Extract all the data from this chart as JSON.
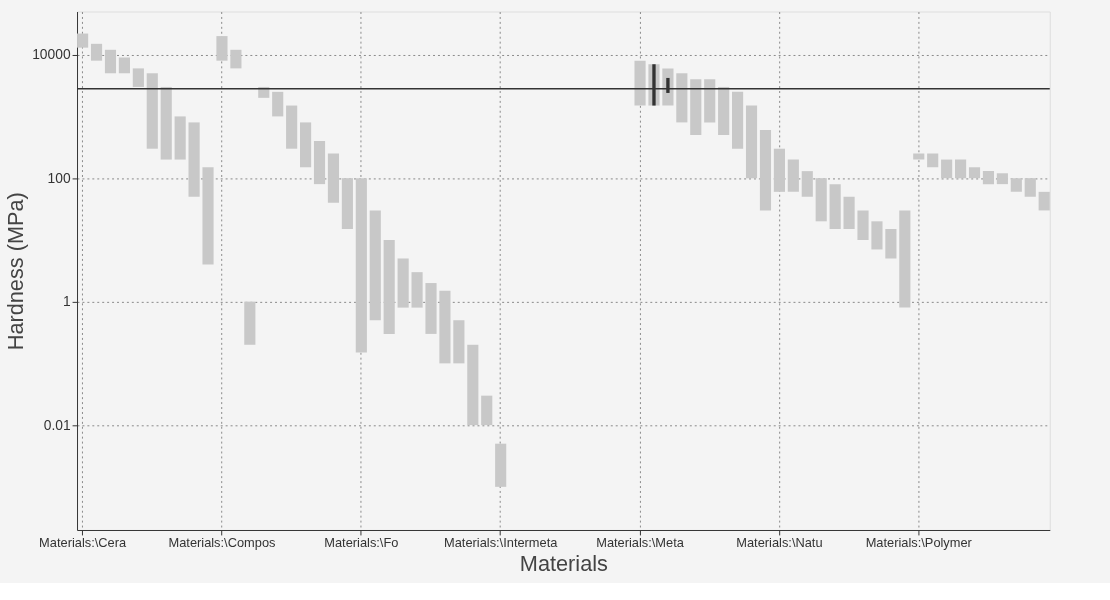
{
  "chart_data": {
    "type": "bar",
    "xlabel": "Materials",
    "ylabel": "Hardness (MPa)",
    "log": true,
    "grid": true,
    "ylim": [
      0.0002,
      50000
    ],
    "yticks": [
      0.01,
      1,
      100,
      10000
    ],
    "categories": [
      "Materials:\\Cera",
      null,
      null,
      null,
      null,
      null,
      null,
      null,
      null,
      null,
      "Materials:\\Compos",
      null,
      null,
      null,
      null,
      null,
      null,
      null,
      null,
      null,
      "Materials:\\Fo",
      null,
      null,
      null,
      null,
      null,
      null,
      null,
      null,
      null,
      "Materials:\\Intermeta",
      null,
      null,
      null,
      null,
      null,
      null,
      null,
      null,
      null,
      "Materials:\\Meta",
      null,
      null,
      null,
      null,
      null,
      null,
      null,
      null,
      null,
      "Materials:\\Natu",
      null,
      null,
      null,
      null,
      null,
      null,
      null,
      null,
      null,
      "Materials:\\Polymer",
      null,
      null,
      null,
      null,
      null,
      null,
      null,
      null,
      null
    ],
    "series": [
      {
        "color": "#c8c8c8",
        "base": [
          13000,
          8000,
          5000,
          5000,
          3000,
          300,
          200,
          200,
          50,
          4,
          8000,
          6000,
          0.2,
          2000,
          1000,
          300,
          150,
          80,
          40,
          15,
          0.15,
          0.5,
          0.3,
          0.8,
          0.8,
          0.3,
          0.1,
          0.1,
          0.01,
          0.01,
          0.001,
          null,
          null,
          null,
          null,
          null,
          null,
          null,
          null,
          null,
          1500,
          1500,
          1500,
          800,
          500,
          800,
          500,
          300,
          100,
          30,
          60,
          60,
          50,
          20,
          15,
          15,
          10,
          7,
          5,
          0.8,
          200,
          150,
          100,
          100,
          100,
          80,
          80,
          60,
          50,
          30
        ],
        "values": [
          9000,
          7000,
          7000,
          4000,
          3000,
          4700,
          2800,
          800,
          750,
          146,
          12000,
          6000,
          0.8,
          1000,
          1500,
          1200,
          650,
          320,
          210,
          85,
          99.85,
          29.5,
          9.7,
          4.2,
          2.2,
          1.7,
          1.4,
          0.4,
          0.19,
          0.02,
          0.004,
          null,
          null,
          null,
          null,
          null,
          null,
          null,
          null,
          null,
          6500,
          5500,
          4500,
          4200,
          3500,
          3200,
          2500,
          2200,
          1400,
          570,
          240,
          140,
          80,
          80,
          65,
          35,
          20,
          13,
          10,
          29.2,
          50,
          100,
          100,
          100,
          50,
          50,
          40,
          40,
          50,
          30
        ]
      },
      {
        "color": "#333333",
        "base": [
          null,
          null,
          null,
          null,
          null,
          null,
          null,
          null,
          null,
          null,
          null,
          null,
          null,
          null,
          null,
          null,
          null,
          null,
          null,
          null,
          null,
          null,
          null,
          null,
          null,
          null,
          null,
          null,
          null,
          null,
          null,
          null,
          null,
          null,
          null,
          null,
          null,
          null,
          null,
          null,
          null,
          1500,
          2400,
          null,
          null,
          null,
          null,
          null,
          null,
          null,
          null,
          null,
          null,
          null,
          null,
          null,
          null,
          null,
          null,
          null,
          null,
          null,
          null,
          null,
          null,
          null,
          null,
          null,
          null,
          null
        ],
        "values": [
          null,
          null,
          null,
          null,
          null,
          null,
          null,
          null,
          null,
          null,
          null,
          null,
          null,
          null,
          null,
          null,
          null,
          null,
          null,
          null,
          null,
          null,
          null,
          null,
          null,
          null,
          null,
          null,
          null,
          null,
          null,
          null,
          null,
          null,
          null,
          null,
          null,
          null,
          null,
          null,
          null,
          5500,
          1800,
          null,
          null,
          null,
          null,
          null,
          null,
          null,
          null,
          null,
          null,
          null,
          null,
          null,
          null,
          null,
          null,
          null,
          null,
          null,
          null,
          null,
          null,
          null,
          null,
          null,
          null,
          null
        ]
      }
    ],
    "ref_lines": [
      {
        "axis": "y",
        "value": 2800,
        "color": "#333333"
      }
    ]
  }
}
